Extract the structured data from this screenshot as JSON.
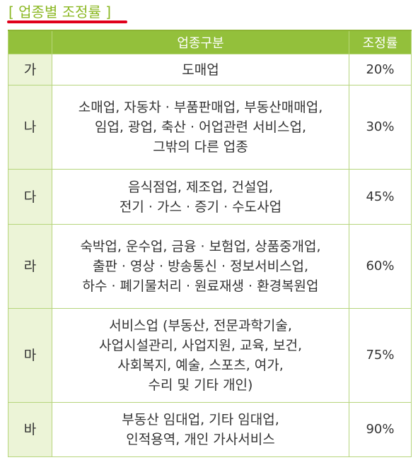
{
  "title": "[ 업종별 조정률 ]",
  "columns": {
    "type": "업종구분",
    "rate": "조정률"
  },
  "rows": [
    {
      "label": "가",
      "lines": [
        "도매업"
      ],
      "rate": "20%"
    },
    {
      "label": "나",
      "lines": [
        "소매업, 자동차 · 부품판매업, 부동산매매업,",
        "임업, 광업, 축산 · 어업관련 서비스업,",
        "그밖의 다른 업종"
      ],
      "rate": "30%"
    },
    {
      "label": "다",
      "lines": [
        "음식점업, 제조업, 건설업,",
        "전기 · 가스 · 증기 · 수도사업"
      ],
      "rate": "45%"
    },
    {
      "label": "라",
      "lines": [
        "숙박업, 운수업, 금융 · 보험업, 상품중개업,",
        "출판 · 영상 · 방송통신 · 정보서비스업,",
        "하수 · 폐기물처리 · 원료재생 · 환경복원업"
      ],
      "rate": "60%"
    },
    {
      "label": "마",
      "lines": [
        "서비스업 (부동산, 전문과학기술,",
        "사업시설관리, 사업지원, 교육, 보건,",
        "사회복지, 예술, 스포츠, 여가,",
        "수리 및 기타 개인)"
      ],
      "rate": "75%"
    },
    {
      "label": "바",
      "lines": [
        "부동산 임대업, 기타 임대업,",
        "인적용역, 개인 가사서비스"
      ],
      "rate": "90%"
    }
  ],
  "colors": {
    "title": "#8cb824",
    "underline": "#e0001b",
    "header_bg": "#93c03b",
    "label_bg": "#ecf4d7",
    "border": "#b6d57c"
  }
}
